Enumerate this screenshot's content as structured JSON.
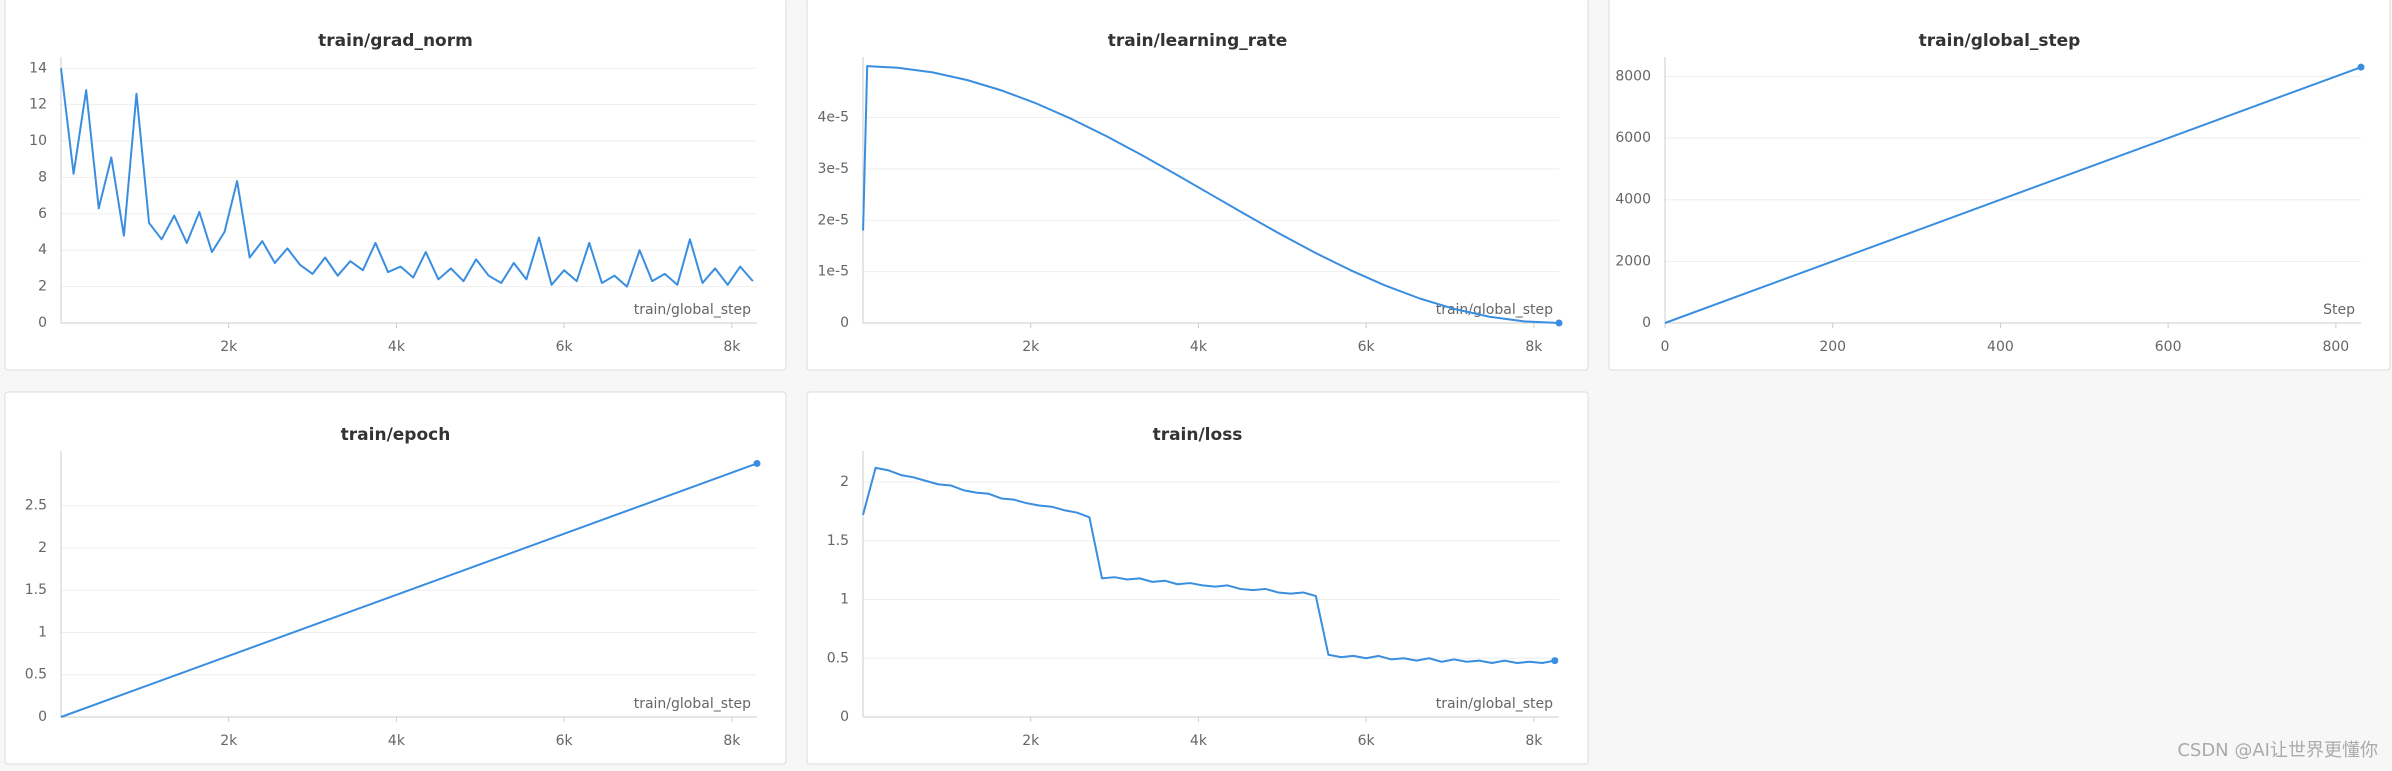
{
  "chart_data": [
    {
      "type": "line",
      "title": "train/grad_norm",
      "x_label": "train/global_step",
      "color": "#3a8ee0",
      "grid": true,
      "end_dot": false,
      "x": [
        0,
        150,
        300,
        450,
        600,
        750,
        900,
        1050,
        1200,
        1350,
        1500,
        1650,
        1800,
        1950,
        2100,
        2250,
        2400,
        2550,
        2700,
        2850,
        3000,
        3150,
        3300,
        3450,
        3600,
        3750,
        3900,
        4050,
        4200,
        4350,
        4500,
        4650,
        4800,
        4950,
        5100,
        5250,
        5400,
        5550,
        5700,
        5850,
        6000,
        6150,
        6300,
        6450,
        6600,
        6750,
        6900,
        7050,
        7200,
        7350,
        7500,
        7650,
        7800,
        7950,
        8100,
        8250
      ],
      "values": [
        14,
        8.2,
        12.8,
        6.3,
        9.1,
        4.8,
        12.6,
        5.5,
        4.6,
        5.9,
        4.4,
        6.1,
        3.9,
        5.0,
        7.8,
        3.6,
        4.5,
        3.3,
        4.1,
        3.2,
        2.7,
        3.6,
        2.6,
        3.4,
        2.9,
        4.4,
        2.8,
        3.1,
        2.5,
        3.9,
        2.4,
        3.0,
        2.3,
        3.5,
        2.6,
        2.2,
        3.3,
        2.4,
        4.7,
        2.1,
        2.9,
        2.3,
        4.4,
        2.2,
        2.6,
        2.0,
        4.0,
        2.3,
        2.7,
        2.1,
        4.6,
        2.2,
        3.0,
        2.1,
        3.1,
        2.3
      ],
      "xlim": [
        0,
        8300
      ],
      "ylim": [
        0,
        14.4
      ],
      "xticks": [
        {
          "value": 2000,
          "label": "2k"
        },
        {
          "value": 4000,
          "label": "4k"
        },
        {
          "value": 6000,
          "label": "6k"
        },
        {
          "value": 8000,
          "label": "8k"
        }
      ],
      "yticks": [
        0,
        2,
        4,
        6,
        8,
        10,
        12,
        14
      ]
    },
    {
      "type": "line",
      "title": "train/learning_rate",
      "x_label": "train/global_step",
      "color": "#3a8ee0",
      "grid": true,
      "end_dot": true,
      "x": [
        1,
        50,
        415,
        830,
        1245,
        1660,
        2075,
        2490,
        2905,
        3320,
        3735,
        4150,
        4565,
        4980,
        5395,
        5810,
        6225,
        6640,
        7055,
        7470,
        7885,
        8300
      ],
      "values": [
        1.8e-05,
        5e-05,
        4.969e-05,
        4.878e-05,
        4.728e-05,
        4.523e-05,
        4.268e-05,
        3.969e-05,
        3.635e-05,
        3.273e-05,
        2.891e-05,
        2.5e-05,
        2.109e-05,
        1.727e-05,
        1.365e-05,
        1.031e-05,
        7.32e-06,
        4.77e-06,
        2.72e-06,
        1.22e-06,
        3.1e-07,
        0
      ],
      "xlim": [
        0,
        8300
      ],
      "ylim": [
        0,
        5.1e-05
      ],
      "xticks": [
        {
          "value": 2000,
          "label": "2k"
        },
        {
          "value": 4000,
          "label": "4k"
        },
        {
          "value": 6000,
          "label": "6k"
        },
        {
          "value": 8000,
          "label": "8k"
        }
      ],
      "yticks": [
        0,
        {
          "value": 1e-05,
          "label": "1e-5"
        },
        {
          "value": 2e-05,
          "label": "2e-5"
        },
        {
          "value": 3e-05,
          "label": "3e-5"
        },
        {
          "value": 4e-05,
          "label": "4e-5"
        }
      ]
    },
    {
      "type": "line",
      "title": "train/global_step",
      "x_label": "Step",
      "color": "#3a8ee0",
      "grid": true,
      "end_dot": true,
      "x": [
        0,
        830
      ],
      "values": [
        0,
        8300
      ],
      "xlim": [
        0,
        830
      ],
      "ylim": [
        0,
        8500
      ],
      "xticks": [
        0,
        200,
        400,
        600,
        800
      ],
      "yticks": [
        0,
        2000,
        4000,
        6000,
        8000
      ]
    },
    {
      "type": "line",
      "title": "train/epoch",
      "x_label": "train/global_step",
      "color": "#3a8ee0",
      "grid": true,
      "end_dot": true,
      "x": [
        0,
        8300
      ],
      "values": [
        0,
        3
      ],
      "xlim": [
        0,
        8300
      ],
      "ylim": [
        0,
        3.1
      ],
      "xticks": [
        {
          "value": 2000,
          "label": "2k"
        },
        {
          "value": 4000,
          "label": "4k"
        },
        {
          "value": 6000,
          "label": "6k"
        },
        {
          "value": 8000,
          "label": "8k"
        }
      ],
      "yticks": [
        0,
        0.5,
        1,
        1.5,
        2,
        2.5
      ]
    },
    {
      "type": "line",
      "title": "train/loss",
      "x_label": "train/global_step",
      "color": "#3a8ee0",
      "grid": true,
      "end_dot": true,
      "x": [
        0,
        150,
        300,
        450,
        600,
        750,
        900,
        1050,
        1200,
        1350,
        1500,
        1650,
        1800,
        1950,
        2100,
        2250,
        2400,
        2550,
        2700,
        2850,
        3000,
        3150,
        3300,
        3450,
        3600,
        3750,
        3900,
        4050,
        4200,
        4350,
        4500,
        4650,
        4800,
        4950,
        5100,
        5250,
        5400,
        5550,
        5700,
        5850,
        6000,
        6150,
        6300,
        6450,
        6600,
        6750,
        6900,
        7050,
        7200,
        7350,
        7500,
        7650,
        7800,
        7950,
        8100,
        8250
      ],
      "values": [
        1.72,
        2.12,
        2.1,
        2.06,
        2.04,
        2.01,
        1.98,
        1.97,
        1.93,
        1.91,
        1.9,
        1.86,
        1.85,
        1.82,
        1.8,
        1.79,
        1.76,
        1.74,
        1.7,
        1.18,
        1.19,
        1.17,
        1.18,
        1.15,
        1.16,
        1.13,
        1.14,
        1.12,
        1.11,
        1.12,
        1.09,
        1.08,
        1.09,
        1.06,
        1.05,
        1.06,
        1.03,
        0.53,
        0.51,
        0.52,
        0.5,
        0.52,
        0.49,
        0.5,
        0.48,
        0.5,
        0.47,
        0.49,
        0.47,
        0.48,
        0.46,
        0.48,
        0.46,
        0.47,
        0.46,
        0.48
      ],
      "xlim": [
        0,
        8300
      ],
      "ylim": [
        0,
        2.23
      ],
      "xticks": [
        {
          "value": 2000,
          "label": "2k"
        },
        {
          "value": 4000,
          "label": "4k"
        },
        {
          "value": 6000,
          "label": "6k"
        },
        {
          "value": 8000,
          "label": "8k"
        }
      ],
      "yticks": [
        0,
        0.5,
        1,
        1.5,
        2
      ]
    }
  ],
  "watermark": "CSDN @AI让世界更懂你"
}
